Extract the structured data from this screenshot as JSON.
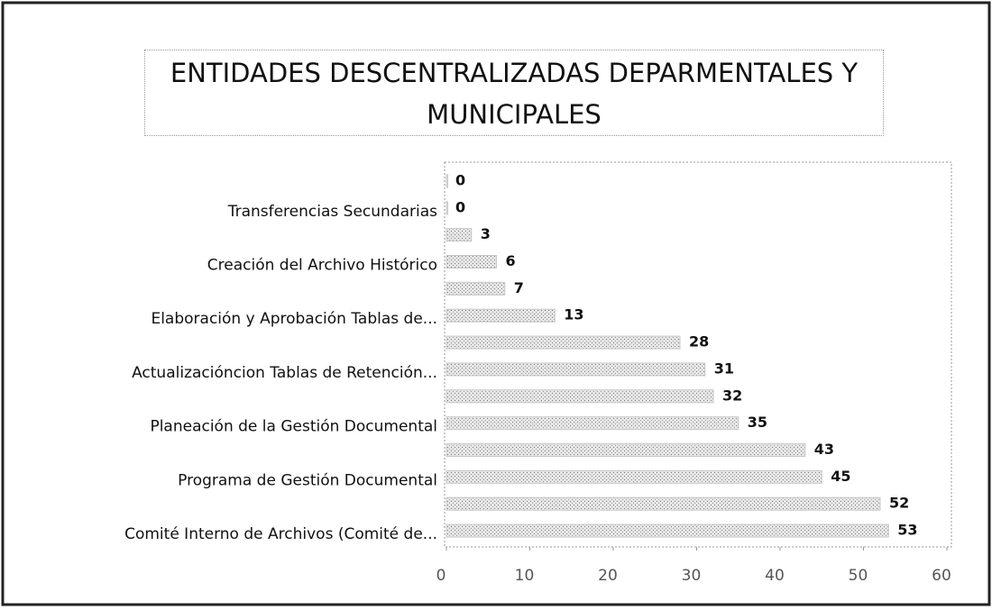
{
  "chart_data": {
    "type": "barh",
    "title": "ENTIDADES DESCENTRALIZADAS DEPARMENTALES Y MUNICIPALES",
    "categories": [
      null,
      "Transferencias Secundarias",
      null,
      "Creación del Archivo Histórico",
      null,
      "Elaboración y Aprobación Tablas de...",
      null,
      "Actualizacióncion Tablas de Retención...",
      null,
      "Planeación de la Gestión Documental",
      null,
      "Programa de Gestión Documental",
      null,
      "Comité Interno de Archivos (Comité de..."
    ],
    "values": [
      0,
      0,
      3,
      6,
      7,
      13,
      28,
      31,
      32,
      35,
      43,
      45,
      52,
      53
    ],
    "color": "#c8c8c8",
    "xlim": [
      0,
      60
    ],
    "xticks": [
      0,
      10,
      20,
      30,
      40,
      50,
      60
    ]
  }
}
